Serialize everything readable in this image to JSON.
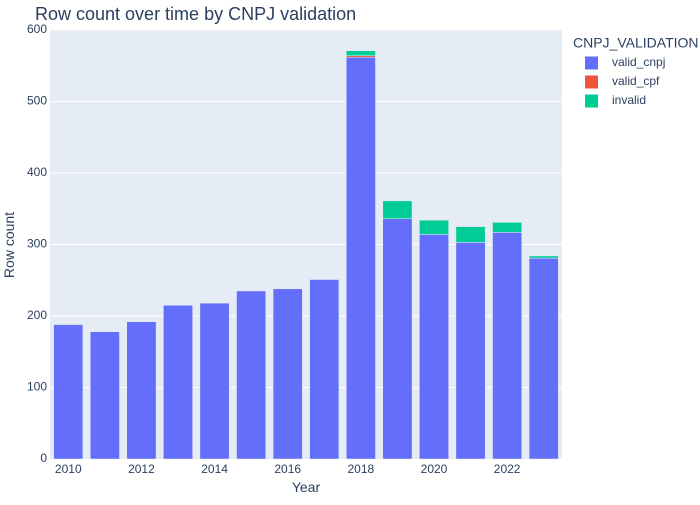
{
  "chart_data": {
    "type": "bar",
    "barmode": "stack",
    "title": "Row count over time by CNPJ validation",
    "xlabel": "Year",
    "ylabel": "Row count",
    "xlim": [
      2009.5,
      2023.5
    ],
    "ylim": [
      0,
      600
    ],
    "x_ticks": [
      "2010",
      "2012",
      "2014",
      "2016",
      "2018",
      "2020",
      "2022"
    ],
    "y_ticks": [
      "0",
      "100",
      "200",
      "300",
      "400",
      "500",
      "600"
    ],
    "grid": true,
    "legend": {
      "title": "CNPJ_VALIDATION",
      "position": "top-right"
    },
    "categories": [
      2010,
      2011,
      2012,
      2013,
      2014,
      2015,
      2016,
      2017,
      2018,
      2019,
      2020,
      2021,
      2022,
      2023
    ],
    "series": [
      {
        "name": "valid_cnpj",
        "color": "#636efa",
        "values": [
          188,
          178,
          192,
          215,
          218,
          235,
          238,
          251,
          562,
          336,
          314,
          303,
          317,
          281
        ]
      },
      {
        "name": "valid_cpf",
        "color": "#ef553b",
        "values": [
          0,
          0,
          0,
          0,
          0,
          0,
          0,
          0,
          2,
          0,
          0,
          0,
          0,
          0
        ]
      },
      {
        "name": "invalid",
        "color": "#00cc96",
        "values": [
          0,
          0,
          0,
          0,
          0,
          0,
          0,
          0,
          7,
          25,
          20,
          22,
          14,
          3
        ]
      }
    ],
    "background_color": "#e5ecf6",
    "gridline_color": "#ffffff"
  }
}
